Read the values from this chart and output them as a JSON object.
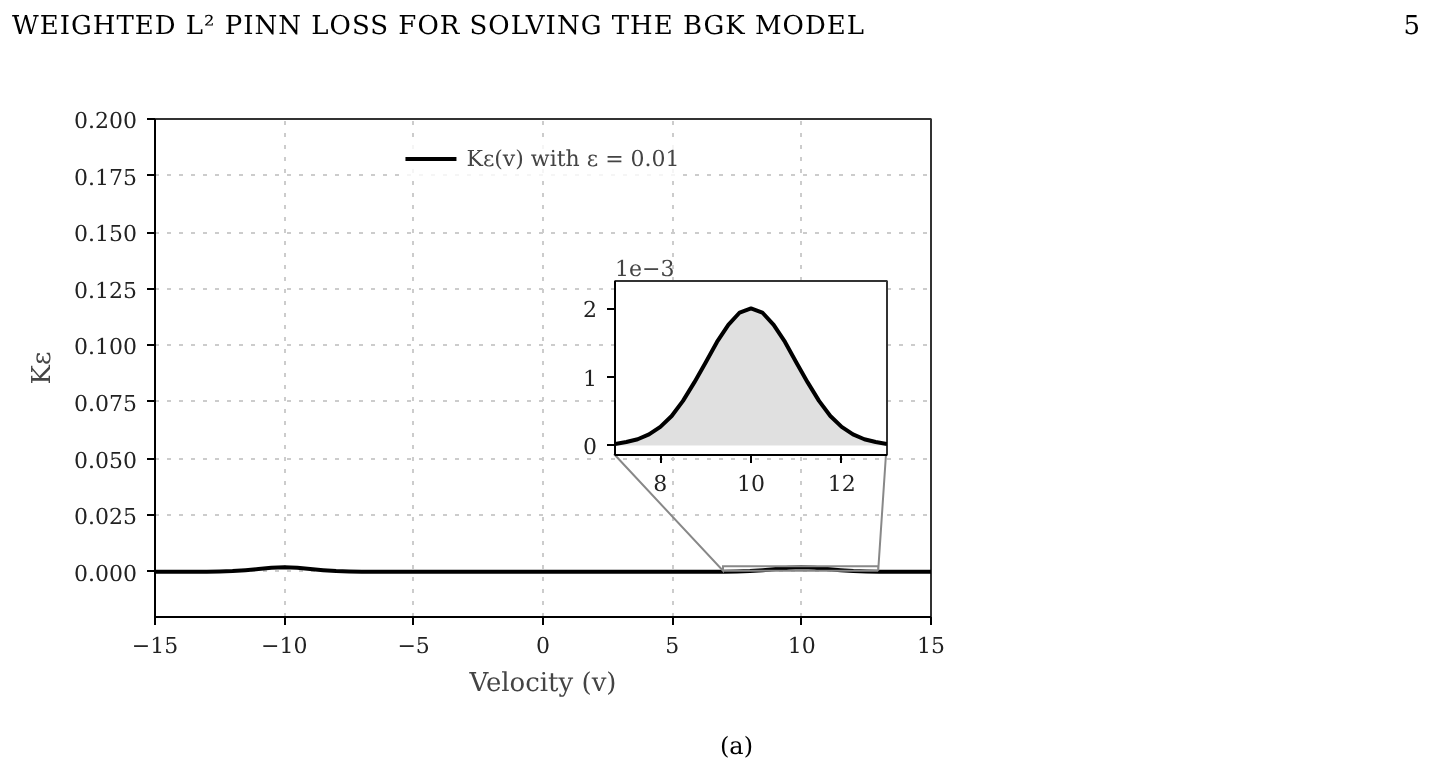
{
  "chart_data": [
    {
      "type": "line",
      "title": null,
      "xlabel": "Velocity (v)",
      "ylabel": "Kε",
      "annotations": [
        "WEIGHTED L² PINN LOSS FOR SOLVING THE BGK MODEL",
        "5",
        "(a)"
      ],
      "x": [
        -15,
        -13,
        -12.5,
        -12,
        -11.5,
        -11,
        -10.5,
        -10,
        -9.5,
        -9,
        -8.5,
        -8,
        -7.5,
        -7,
        -5,
        0,
        5,
        7,
        7.5,
        8,
        8.5,
        9,
        9.5,
        10,
        10.5,
        11,
        11.5,
        12,
        12.5,
        13,
        15
      ],
      "series": [
        {
          "name": "Kε(v) with ε = 0.01",
          "color": "#000000",
          "values": [
            0,
            0,
            0.0001,
            0.0003,
            0.0007,
            0.0012,
            0.0018,
            0.002,
            0.0018,
            0.0012,
            0.0007,
            0.0003,
            0.0001,
            0,
            0,
            0,
            0,
            0,
            0.0001,
            0.0003,
            0.0007,
            0.0012,
            0.0018,
            0.002,
            0.0018,
            0.0012,
            0.0007,
            0.0003,
            0.0001,
            0,
            0
          ]
        }
      ],
      "xlim": [
        -15,
        15
      ],
      "ylim": [
        -0.02,
        0.2
      ],
      "xticks": [
        {
          "value": -15,
          "label": "−15"
        },
        {
          "value": -10,
          "label": "−10"
        },
        {
          "value": -5,
          "label": "−5"
        },
        0,
        5,
        10,
        15
      ],
      "yticks": [
        {
          "value": 0,
          "label": "0.000"
        },
        {
          "value": 0.025,
          "label": "0.025"
        },
        {
          "value": 0.05,
          "label": "0.050"
        },
        {
          "value": 0.075,
          "label": "0.075"
        },
        {
          "value": 0.1,
          "label": "0.100"
        },
        {
          "value": 0.125,
          "label": "0.125"
        },
        {
          "value": 0.15,
          "label": "0.150"
        },
        {
          "value": 0.175,
          "label": "0.175"
        },
        {
          "value": 0.2,
          "label": "0.200"
        }
      ],
      "grid": true,
      "legend": "top",
      "line_style": "solid"
    },
    {
      "type": "area",
      "annotations": [
        "1e−3"
      ],
      "x": [
        7,
        7.25,
        7.5,
        7.75,
        8,
        8.25,
        8.5,
        8.75,
        9,
        9.25,
        9.5,
        9.75,
        10,
        10.25,
        10.5,
        10.75,
        11,
        11.25,
        11.5,
        11.75,
        12,
        12.25,
        12.5,
        12.75,
        13
      ],
      "series": [
        {
          "color": "#000000",
          "values": [
            0.02,
            0.05,
            0.09,
            0.16,
            0.27,
            0.43,
            0.65,
            0.92,
            1.21,
            1.51,
            1.76,
            1.94,
            2.0,
            1.94,
            1.76,
            1.51,
            1.21,
            0.92,
            0.65,
            0.43,
            0.27,
            0.16,
            0.09,
            0.05,
            0.02
          ]
        }
      ],
      "xlim": [
        7,
        13
      ],
      "ylim": [
        -0.14,
        2.4
      ],
      "xticks": [
        8,
        10,
        12
      ],
      "yticks": [
        0,
        1,
        2
      ],
      "grid": false,
      "legend": false,
      "line_style": "solid"
    }
  ]
}
